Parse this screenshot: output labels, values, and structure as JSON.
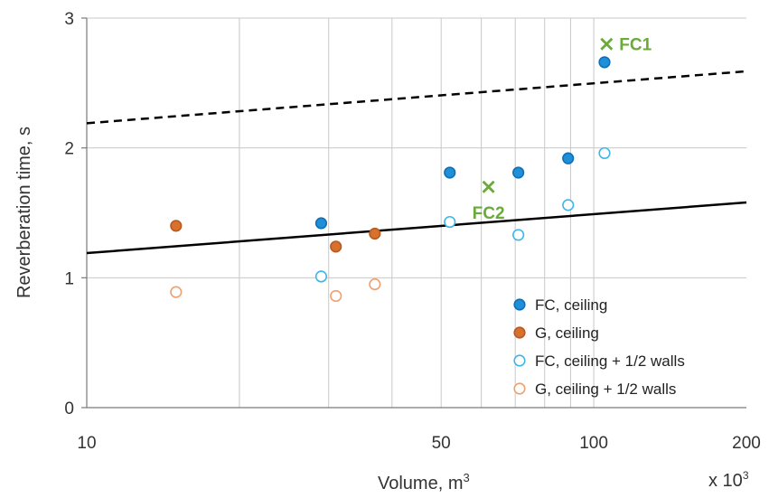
{
  "chart_data": {
    "type": "scatter",
    "title": "",
    "xlabel": "Volume, m",
    "xlabel_superscript": "3",
    "x_multiplier_label": "x 10",
    "x_multiplier_superscript": "3",
    "ylabel": "Reverberation time, s",
    "x_scale": "log",
    "xlim": [
      10,
      200
    ],
    "ylim": [
      0,
      3
    ],
    "x_tick_labels": [
      {
        "value": 10,
        "label": "10"
      },
      {
        "value": 50,
        "label": "50"
      },
      {
        "value": 100,
        "label": "100"
      },
      {
        "value": 200,
        "label": "200"
      }
    ],
    "x_gridlines": [
      20,
      30,
      40,
      50,
      60,
      70,
      80,
      90,
      100
    ],
    "y_tick_labels": [
      {
        "value": 0,
        "label": "0"
      },
      {
        "value": 1,
        "label": "1"
      },
      {
        "value": 2,
        "label": "2"
      },
      {
        "value": 3,
        "label": "3"
      }
    ],
    "grid": true,
    "legend_position": "bottom-right",
    "colors": {
      "fc": "#1f8fd8",
      "fc_edge": "#0f6fb8",
      "fc_open": "#3fb6ea",
      "g": "#d8702e",
      "g_edge": "#b85a20",
      "g_open": "#f0a070",
      "anno": "#6aaa3a",
      "grid": "#c8c8c8",
      "line": "#000000"
    },
    "series": [
      {
        "name": "FC, ceiling",
        "marker": "filled-circle",
        "color": "#1f8fd8",
        "points": [
          [
            29,
            1.42
          ],
          [
            52,
            1.81
          ],
          [
            71,
            1.81
          ],
          [
            89,
            1.92
          ],
          [
            105,
            2.66
          ]
        ]
      },
      {
        "name": "G, ceiling",
        "marker": "filled-circle",
        "color": "#d8702e",
        "points": [
          [
            15,
            1.4
          ],
          [
            31,
            1.24
          ],
          [
            37,
            1.34
          ]
        ]
      },
      {
        "name": "FC, ceiling + 1/2 walls",
        "marker": "open-circle",
        "color": "#3fb6ea",
        "points": [
          [
            29,
            1.01
          ],
          [
            52,
            1.43
          ],
          [
            71,
            1.33
          ],
          [
            89,
            1.56
          ],
          [
            105,
            1.96
          ]
        ]
      },
      {
        "name": "G, ceiling + 1/2 walls",
        "marker": "open-circle",
        "color": "#f0a070",
        "points": [
          [
            15,
            0.89
          ],
          [
            31,
            0.86
          ],
          [
            37,
            0.95
          ]
        ]
      }
    ],
    "reference_lines": [
      {
        "style": "dashed",
        "points": [
          [
            10,
            2.19
          ],
          [
            200,
            2.59
          ]
        ]
      },
      {
        "style": "solid",
        "points": [
          [
            10,
            1.19
          ],
          [
            200,
            1.58
          ]
        ]
      }
    ],
    "annotations": [
      {
        "label": "FC1",
        "marker": "x",
        "point": [
          106,
          2.8
        ]
      },
      {
        "label": "FC2",
        "marker": "x",
        "point": [
          62,
          1.7
        ]
      }
    ]
  }
}
